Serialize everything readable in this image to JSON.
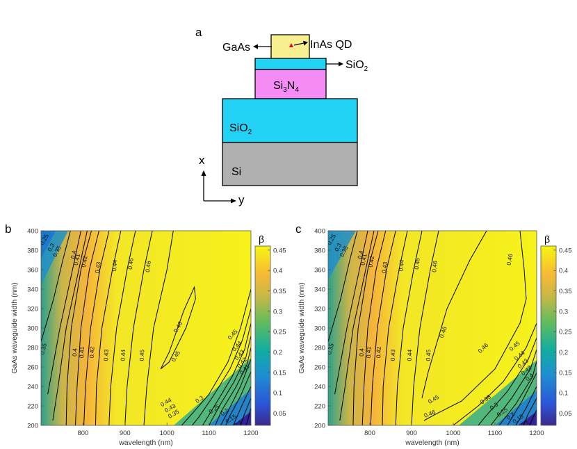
{
  "figure": {
    "panel_labels": {
      "a": "a",
      "b": "b",
      "c": "c"
    },
    "schematic": {
      "layers": {
        "gaas": "GaAs",
        "qd": "InAs QD",
        "sio2_top": "SiO",
        "sio2_top_sub": "2",
        "si3n4_main": "Si",
        "si3n4_sub1": "3",
        "si3n4_mid": "N",
        "si3n4_sub2": "4",
        "sio2_box": "SiO",
        "sio2_box_sub": "2",
        "si": "Si"
      },
      "axes": {
        "x": "x",
        "y": "y"
      },
      "colors": {
        "gaas": "#f7ef90",
        "sio2": "#22d3f5",
        "si3n4": "#f58cf5",
        "si": "#b0b0b0",
        "qd": "#e8001c"
      }
    }
  },
  "chart_data": [
    {
      "type": "heatmap",
      "panel": "b",
      "xlabel": "wavelength (nm)",
      "ylabel": "GaAs waveguide width (nm)",
      "colorbar_title": "β",
      "xlim": [
        700,
        1200
      ],
      "ylim": [
        200,
        400
      ],
      "xticks": [
        "800",
        "900",
        "1000",
        "1100",
        "1200"
      ],
      "yticks": [
        "200",
        "220",
        "240",
        "260",
        "280",
        "300",
        "320",
        "340",
        "360",
        "380",
        "400"
      ],
      "colorbar_ticks": [
        "0.05",
        "0.1",
        "0.15",
        "0.2",
        "0.25",
        "0.3",
        "0.35",
        "0.4",
        "0.45"
      ],
      "colorbar_range": [
        0.02,
        0.46
      ],
      "contour_labels": [
        "0.25",
        "0.3",
        "0.35",
        "0.4",
        "0.41",
        "0.42",
        "0.43",
        "0.44",
        "0.45",
        "0.46",
        "0.46",
        "0.35",
        "0.4",
        "0.41",
        "0.42",
        "0.43",
        "0.44",
        "0.45",
        "0.45",
        "0.44",
        "0.43",
        "0.42",
        "0.41",
        "0.45",
        "0.44",
        "0.43",
        "0.35",
        "0.3",
        "0.25",
        "0.2",
        "0.15",
        "0.1"
      ]
    },
    {
      "type": "heatmap",
      "panel": "c",
      "xlabel": "wavelength (nm)",
      "ylabel": "GaAs waveguide width (nm)",
      "colorbar_title": "β",
      "xlim": [
        700,
        1200
      ],
      "ylim": [
        200,
        400
      ],
      "xticks": [
        "800",
        "900",
        "1000",
        "1100",
        "1200"
      ],
      "yticks": [
        "200",
        "220",
        "240",
        "260",
        "280",
        "300",
        "320",
        "340",
        "360",
        "380",
        "400"
      ],
      "colorbar_ticks": [
        "0.05",
        "0.1",
        "0.15",
        "0.2",
        "0.25",
        "0.3",
        "0.35",
        "0.4",
        "0.45"
      ],
      "colorbar_range": [
        0.02,
        0.46
      ],
      "contour_labels": [
        "0.25",
        "0.3",
        "0.35",
        "0.4",
        "0.41",
        "0.42",
        "0.43",
        "0.44",
        "0.45",
        "0.46",
        "0.46",
        "0.35",
        "0.4",
        "0.41",
        "0.42",
        "0.43",
        "0.44",
        "0.45",
        "0.46",
        "0.46",
        "0.45",
        "0.44",
        "0.43",
        "0.42",
        "0.4",
        "0.45",
        "0.46",
        "0.35",
        "0.3",
        "0.25",
        "0.2",
        "0.15",
        "0.1"
      ]
    }
  ]
}
